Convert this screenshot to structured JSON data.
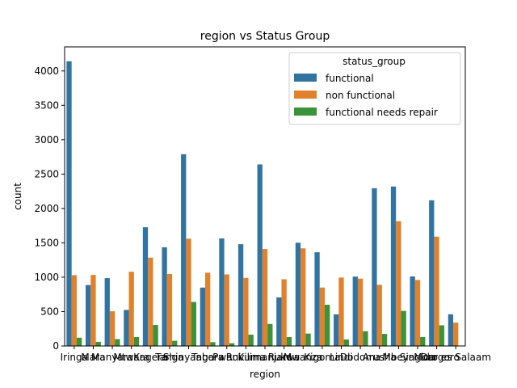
{
  "chart_data": {
    "type": "bar",
    "title": "region vs Status Group",
    "xlabel": "region",
    "ylabel": "count",
    "ylim": [
      0,
      4350
    ],
    "yticks": [
      0,
      500,
      1000,
      1500,
      2000,
      2500,
      3000,
      3500,
      4000
    ],
    "grid": false,
    "legend_title": "status_group",
    "legend_position": "top-right",
    "categories": [
      "Iringa",
      "Mara",
      "Manyara",
      "Mtwara",
      "Kagera",
      "Tanga",
      "Shinyanga",
      "Tabora",
      "Pwani",
      "Ruvuma",
      "Kilimanjaro",
      "Rukwa",
      "Mwanza",
      "Kigoma",
      "Lindi",
      "Dodoma",
      "Arusha",
      "Mbeya",
      "Singida",
      "Morogoro",
      "Dar es Salaam"
    ],
    "series": [
      {
        "name": "functional",
        "color": "#3274a1",
        "values": [
          4141,
          886,
          987,
          524,
          1727,
          1436,
          2789,
          849,
          1565,
          1480,
          2640,
          707,
          1502,
          1363,
          460,
          1009,
          2294,
          2319,
          1011,
          2119,
          461
        ]
      },
      {
        "name": "non functional",
        "color": "#e1812c",
        "values": [
          1030,
          1033,
          505,
          1080,
          1285,
          1046,
          1560,
          1065,
          1040,
          990,
          1410,
          970,
          1420,
          850,
          995,
          980,
          890,
          1815,
          960,
          1590,
          340
        ]
      },
      {
        "name": "functional needs repair",
        "color": "#3a923a",
        "values": [
          120,
          60,
          100,
          130,
          305,
          75,
          640,
          55,
          40,
          165,
          320,
          130,
          180,
          600,
          95,
          215,
          175,
          510,
          130,
          300,
          0
        ]
      }
    ]
  }
}
